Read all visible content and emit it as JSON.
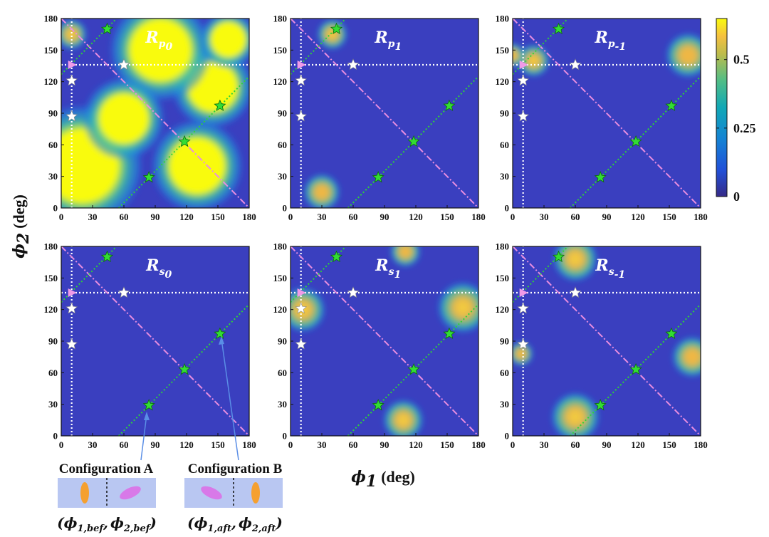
{
  "chart_data": {
    "type": "heatmap",
    "x_axis": {
      "label": "ϕ",
      "label_sub": "1",
      "unit": "(deg)",
      "range": [
        0,
        180
      ],
      "ticks": [
        0,
        30,
        60,
        90,
        120,
        150,
        180
      ]
    },
    "y_axis": {
      "label": "ϕ",
      "label_sub": "2",
      "unit": "(deg)",
      "range": [
        0,
        180
      ],
      "ticks": [
        0,
        30,
        60,
        90,
        120,
        150,
        180
      ]
    },
    "colorbar": {
      "range": [
        0,
        0.65
      ],
      "ticks": [
        {
          "value": 0.5,
          "label": "0.5"
        },
        {
          "value": 0.25,
          "label": "0.25"
        },
        {
          "value": 0,
          "label": "0"
        }
      ],
      "colormap": "parula"
    },
    "colors": {
      "diagonal_line": "#e88de0",
      "green_line": "#2ed33a",
      "white_guides": "#ffffff",
      "green_star": "#33dd33",
      "white_star": "#ffffff",
      "pink_marker": "#f09ae8",
      "ellipse_orange": "#f5a030",
      "ellipse_purple": "#d879e8",
      "cell_bg": "#b9c7f2"
    },
    "guides": {
      "horizontal_y": 136,
      "vertical_x": 10,
      "diagonal": [
        [
          0,
          180
        ],
        [
          180,
          0
        ]
      ],
      "green_lines": [
        [
          [
            0,
            127
          ],
          [
            53,
            180
          ]
        ],
        [
          [
            55,
            0
          ],
          [
            180,
            125
          ]
        ]
      ]
    },
    "markers": {
      "green_stars": [
        [
          44,
          170
        ],
        [
          118,
          63
        ],
        [
          84,
          29
        ],
        [
          152,
          97
        ]
      ],
      "white_stars": [
        [
          60,
          136
        ],
        [
          10,
          121
        ],
        [
          10,
          87
        ]
      ],
      "pink_triangle": [
        10,
        136
      ]
    },
    "panels": [
      {
        "title": "R",
        "sub": "p",
        "subsub": "0",
        "hotspots": [
          {
            "x": 20,
            "y": 40,
            "r": 60,
            "v": 1.5
          },
          {
            "x": 130,
            "y": 40,
            "r": 45,
            "v": 1.4
          },
          {
            "x": 145,
            "y": 115,
            "r": 40,
            "v": 1.3
          },
          {
            "x": 95,
            "y": 150,
            "r": 50,
            "v": 1.3
          },
          {
            "x": 60,
            "y": 85,
            "r": 40,
            "v": 1.2
          },
          {
            "x": 160,
            "y": 160,
            "r": 28,
            "v": 1.0
          },
          {
            "x": 10,
            "y": 165,
            "r": 15,
            "v": 0.8
          }
        ]
      },
      {
        "title": "R",
        "sub": "p",
        "subsub": "1",
        "hotspots": [
          {
            "x": 40,
            "y": 165,
            "r": 15,
            "v": 0.72
          },
          {
            "x": 30,
            "y": 15,
            "r": 18,
            "v": 0.6
          }
        ]
      },
      {
        "title": "R",
        "sub": "p",
        "subsub": "-1",
        "hotspots": [
          {
            "x": 20,
            "y": 140,
            "r": 16,
            "v": 0.75
          },
          {
            "x": 168,
            "y": 145,
            "r": 22,
            "v": 0.65
          },
          {
            "x": 0,
            "y": 145,
            "r": 12,
            "v": 0.55
          }
        ]
      },
      {
        "title": "R",
        "sub": "s",
        "subsub": "0",
        "hotspots": []
      },
      {
        "title": "R",
        "sub": "s",
        "subsub": "1",
        "hotspots": [
          {
            "x": 12,
            "y": 120,
            "r": 22,
            "v": 0.75
          },
          {
            "x": 165,
            "y": 122,
            "r": 25,
            "v": 0.72
          },
          {
            "x": 108,
            "y": 15,
            "r": 20,
            "v": 0.72
          },
          {
            "x": 110,
            "y": 175,
            "r": 15,
            "v": 0.6
          }
        ]
      },
      {
        "title": "R",
        "sub": "s",
        "subsub": "-1",
        "hotspots": [
          {
            "x": 60,
            "y": 168,
            "r": 22,
            "v": 0.8
          },
          {
            "x": 60,
            "y": 18,
            "r": 24,
            "v": 0.72
          },
          {
            "x": 172,
            "y": 75,
            "r": 20,
            "v": 0.7
          },
          {
            "x": 8,
            "y": 78,
            "r": 12,
            "v": 0.5
          }
        ]
      }
    ]
  },
  "annotations": {
    "config_a": {
      "label": "Configuration A",
      "coord_open": "(",
      "phi1": "ϕ",
      "phi1_sub": "1,bef",
      "comma": ",",
      "phi2": "ϕ",
      "phi2_sub": "2,bef",
      "coord_close": ")"
    },
    "config_b": {
      "label": "Configuration B",
      "coord_open": "(",
      "phi1": "ϕ",
      "phi1_sub": "1,aft",
      "comma": ",",
      "phi2": "ϕ",
      "phi2_sub": "2,aft",
      "coord_close": ")"
    }
  }
}
